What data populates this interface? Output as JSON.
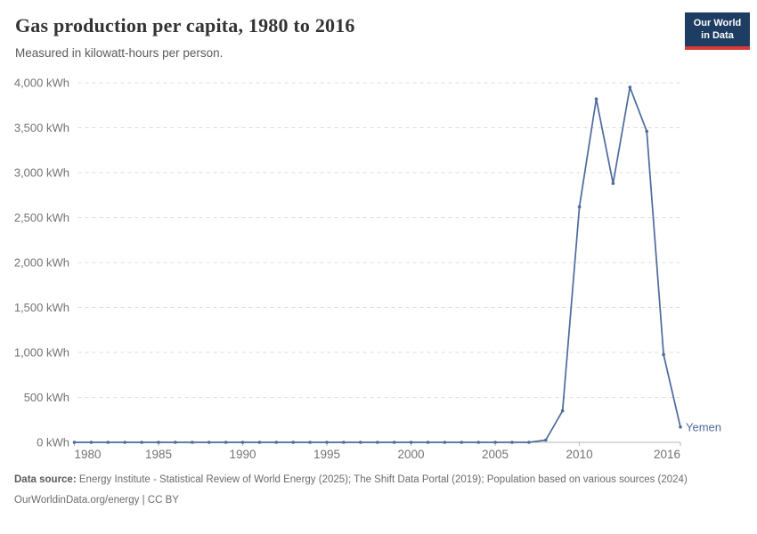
{
  "header": {
    "title": "Gas production per capita, 1980 to 2016",
    "subtitle": "Measured in kilowatt-hours per person.",
    "logo": {
      "line1": "Our World",
      "line2": "in Data"
    }
  },
  "chart_data": {
    "type": "line",
    "title": "Gas production per capita, 1980 to 2016",
    "subtitle": "Measured in kilowatt-hours per person.",
    "xlabel": "",
    "ylabel": "kilowatt-hours per person",
    "xlim": [
      1980,
      2016
    ],
    "ylim": [
      0,
      4000
    ],
    "xticks": [
      1980,
      1985,
      1990,
      1995,
      2000,
      2005,
      2010,
      2016
    ],
    "yticks": [
      0,
      500,
      1000,
      1500,
      2000,
      2500,
      3000,
      3500,
      4000
    ],
    "ytick_suffix": " kWh",
    "grid": "horizontal-dashed",
    "legend_position": "end-of-line-label",
    "colors": {
      "line": "#4C6A9C",
      "gridline": "#dedede",
      "axis": "#b5b5b5",
      "tick_label": "#737373"
    },
    "series": [
      {
        "name": "Yemen",
        "color": "#4C6A9C",
        "x": [
          1980,
          1981,
          1982,
          1983,
          1984,
          1985,
          1986,
          1987,
          1988,
          1989,
          1990,
          1991,
          1992,
          1993,
          1994,
          1995,
          1996,
          1997,
          1998,
          1999,
          2000,
          2001,
          2002,
          2003,
          2004,
          2005,
          2006,
          2007,
          2008,
          2009,
          2010,
          2011,
          2012,
          2013,
          2014,
          2015,
          2016
        ],
        "values": [
          0,
          0,
          0,
          0,
          0,
          0,
          0,
          0,
          0,
          0,
          0,
          0,
          0,
          0,
          0,
          0,
          0,
          0,
          0,
          0,
          0,
          0,
          0,
          0,
          0,
          0,
          0,
          0,
          25,
          350,
          2620,
          3820,
          2880,
          3950,
          3460,
          975,
          170
        ]
      }
    ]
  },
  "footer": {
    "datasource_label": "Data source:",
    "datasource_text": "Energy Institute - Statistical Review of World Energy (2025); The Shift Data Portal (2019); Population based on various sources (2024)",
    "license_line": "OurWorldinData.org/energy | CC BY"
  }
}
